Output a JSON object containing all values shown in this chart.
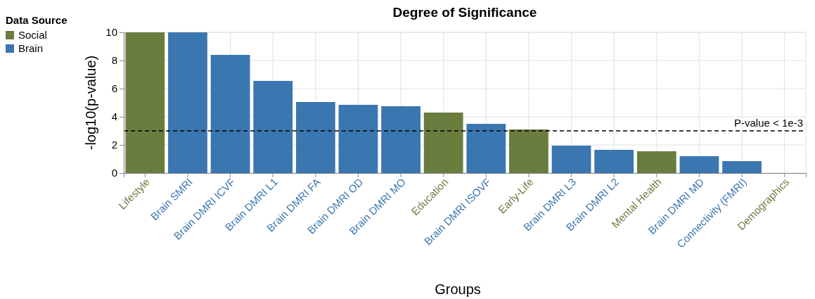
{
  "chart_data": {
    "type": "bar",
    "title": "Degree of Significance",
    "xlabel": "Groups",
    "ylabel": "-log10(p-value)",
    "legend_title": "Data Source",
    "legend": "top left",
    "grid": true,
    "categories": [
      "Lifestyle",
      "Brain SMRI",
      "Brain DMRI ICVF",
      "Brain DMRI L1",
      "Brain DMRI FA",
      "Brain DMRI OD",
      "Brain DMRI MO",
      "Education",
      "Brain DMRI ISOVF",
      "Early-Life",
      "Brain DMRI L3",
      "Brain DMRI L2",
      "Mental Health",
      "Brain DMRI MD",
      "Connectivity (FMRI)",
      "Demographics"
    ],
    "series": [
      {
        "name": "Social",
        "color": "#6a7d3f",
        "values": [
          10,
          null,
          null,
          null,
          null,
          null,
          null,
          4.3,
          null,
          3.1,
          null,
          null,
          1.55,
          null,
          null,
          0
        ]
      },
      {
        "name": "Brain",
        "color": "#3a76b0",
        "values": [
          null,
          10,
          8.4,
          6.55,
          5.05,
          4.85,
          4.75,
          null,
          3.5,
          null,
          1.95,
          1.65,
          null,
          1.2,
          0.85,
          null
        ]
      }
    ],
    "ylim": [
      0,
      10
    ],
    "yticks": [
      0,
      2,
      4,
      6,
      8,
      10
    ],
    "ref_lines": [
      {
        "axis": "y",
        "value": 3,
        "label": "P-value < 1e-3",
        "line_style": "dashed",
        "color": "#000000"
      }
    ]
  }
}
